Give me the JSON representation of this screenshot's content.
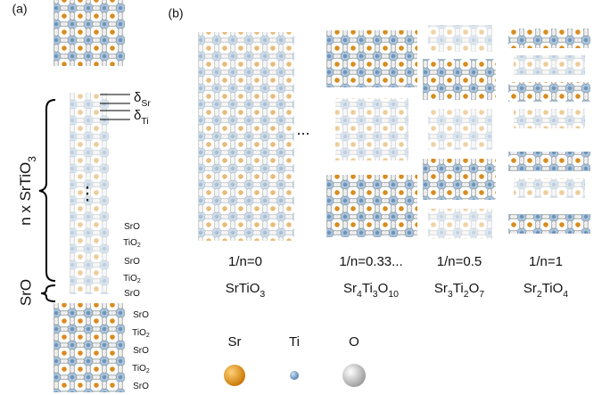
{
  "panel_a": {
    "label": "(a)",
    "delta_sr": [
      {
        "t": "δ"
      },
      {
        "t": "Sr",
        "sub": true
      }
    ],
    "delta_ti": [
      {
        "t": "δ"
      },
      {
        "t": "Ti",
        "sub": true
      }
    ],
    "n_label": [
      {
        "t": "n x SrTiO"
      },
      {
        "t": "3",
        "sub": true
      }
    ],
    "sro_label": "SrO",
    "ellipsis": "⋮",
    "upper_layers": [
      [
        {
          "t": "SrO"
        }
      ],
      [
        {
          "t": "TiO"
        },
        {
          "t": "2",
          "sub": true
        }
      ],
      [
        {
          "t": "SrO"
        }
      ],
      [
        {
          "t": "TiO"
        },
        {
          "t": "2",
          "sub": true
        }
      ],
      [
        {
          "t": "SrO"
        }
      ]
    ],
    "lower_layers": [
      [
        {
          "t": "SrO"
        }
      ],
      [
        {
          "t": "TiO"
        },
        {
          "t": "2",
          "sub": true
        }
      ],
      [
        {
          "t": "SrO"
        }
      ],
      [
        {
          "t": "TiO"
        },
        {
          "t": "2",
          "sub": true
        }
      ],
      [
        {
          "t": "SrO"
        }
      ]
    ]
  },
  "panel_b": {
    "label": "(b)",
    "ellipsis": "...",
    "structures": [
      {
        "ratio": "1/n=0",
        "formula": [
          {
            "t": "SrTiO"
          },
          {
            "t": "3",
            "sub": true
          }
        ]
      },
      {
        "ratio": "1/n=0.33...",
        "formula": [
          {
            "t": "Sr"
          },
          {
            "t": "4",
            "sub": true
          },
          {
            "t": "Ti"
          },
          {
            "t": "3",
            "sub": true
          },
          {
            "t": "O"
          },
          {
            "t": "10",
            "sub": true
          }
        ]
      },
      {
        "ratio": "1/n=0.5",
        "formula": [
          {
            "t": "Sr"
          },
          {
            "t": "3",
            "sub": true
          },
          {
            "t": "Ti"
          },
          {
            "t": "2",
            "sub": true
          },
          {
            "t": "O"
          },
          {
            "t": "7",
            "sub": true
          }
        ]
      },
      {
        "ratio": "1/n=1",
        "formula": [
          {
            "t": "Sr"
          },
          {
            "t": "2",
            "sub": true
          },
          {
            "t": "TiO"
          },
          {
            "t": "4",
            "sub": true
          }
        ]
      }
    ],
    "legend": [
      "Sr",
      "Ti",
      "O"
    ]
  }
}
